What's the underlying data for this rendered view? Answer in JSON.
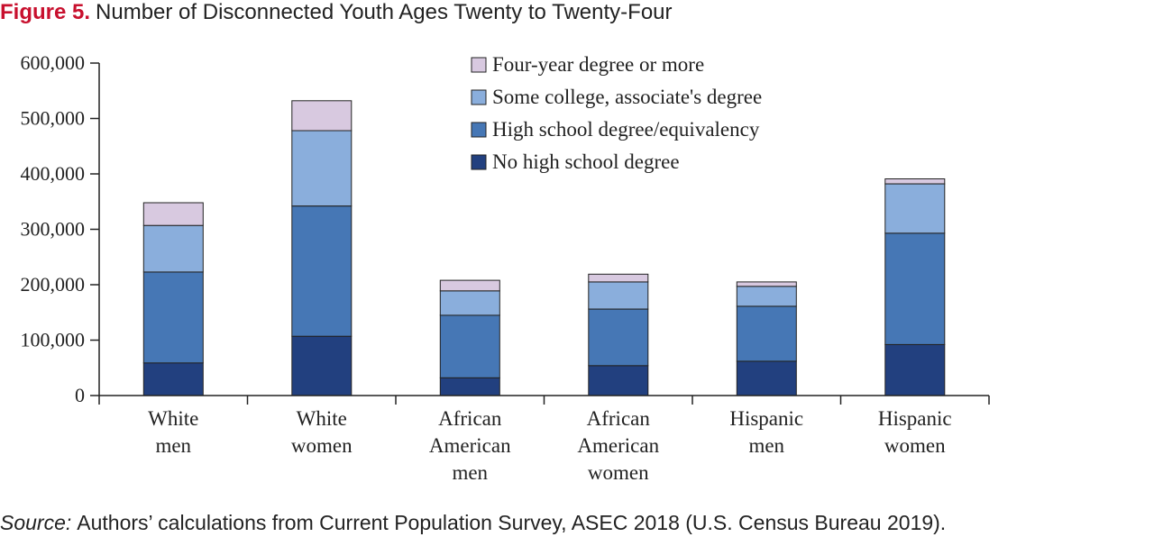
{
  "title": {
    "lead": "Figure 5.",
    "text": "Number of Disconnected Youth Ages Twenty to Twenty-Four"
  },
  "source": {
    "lead": "Source:",
    "text": "Authors’ calculations from Current Population Survey, ASEC 2018 (U.S. Census Bureau 2019)."
  },
  "colors": {
    "no_high_school": "#22407f",
    "high_school": "#4677b5",
    "some_college": "#8aaedc",
    "four_year": "#d8c9e0",
    "axis": "#222222"
  },
  "chart_data": {
    "type": "bar",
    "stacked": true,
    "categories": [
      [
        "White",
        "men"
      ],
      [
        "White",
        "women"
      ],
      [
        "African",
        "American",
        "men"
      ],
      [
        "African",
        "American",
        "women"
      ],
      [
        "Hispanic",
        "men"
      ],
      [
        "Hispanic",
        "women"
      ]
    ],
    "series": [
      {
        "name": "No high school degree",
        "color_key": "no_high_school",
        "values": [
          59000,
          107000,
          32000,
          54000,
          62000,
          92000
        ]
      },
      {
        "name": "High school degree/equivalency",
        "color_key": "high_school",
        "values": [
          164000,
          235000,
          113000,
          102000,
          99000,
          201000
        ]
      },
      {
        "name": "Some college, associate's degree",
        "color_key": "some_college",
        "values": [
          84000,
          136000,
          44000,
          49000,
          36000,
          89000
        ]
      },
      {
        "name": "Four-year degree or more",
        "color_key": "four_year",
        "values": [
          41000,
          54000,
          19000,
          14000,
          8000,
          9000
        ]
      }
    ],
    "legend_order": [
      3,
      2,
      1,
      0
    ],
    "legend_position": "top-center",
    "ylim": [
      0,
      600000
    ],
    "yticks": [
      0,
      100000,
      200000,
      300000,
      400000,
      500000,
      600000
    ],
    "ytick_labels": [
      "0",
      "100,000",
      "200,000",
      "300,000",
      "400,000",
      "500,000",
      "600,000"
    ],
    "grid": false,
    "xlabel": "",
    "ylabel": ""
  }
}
